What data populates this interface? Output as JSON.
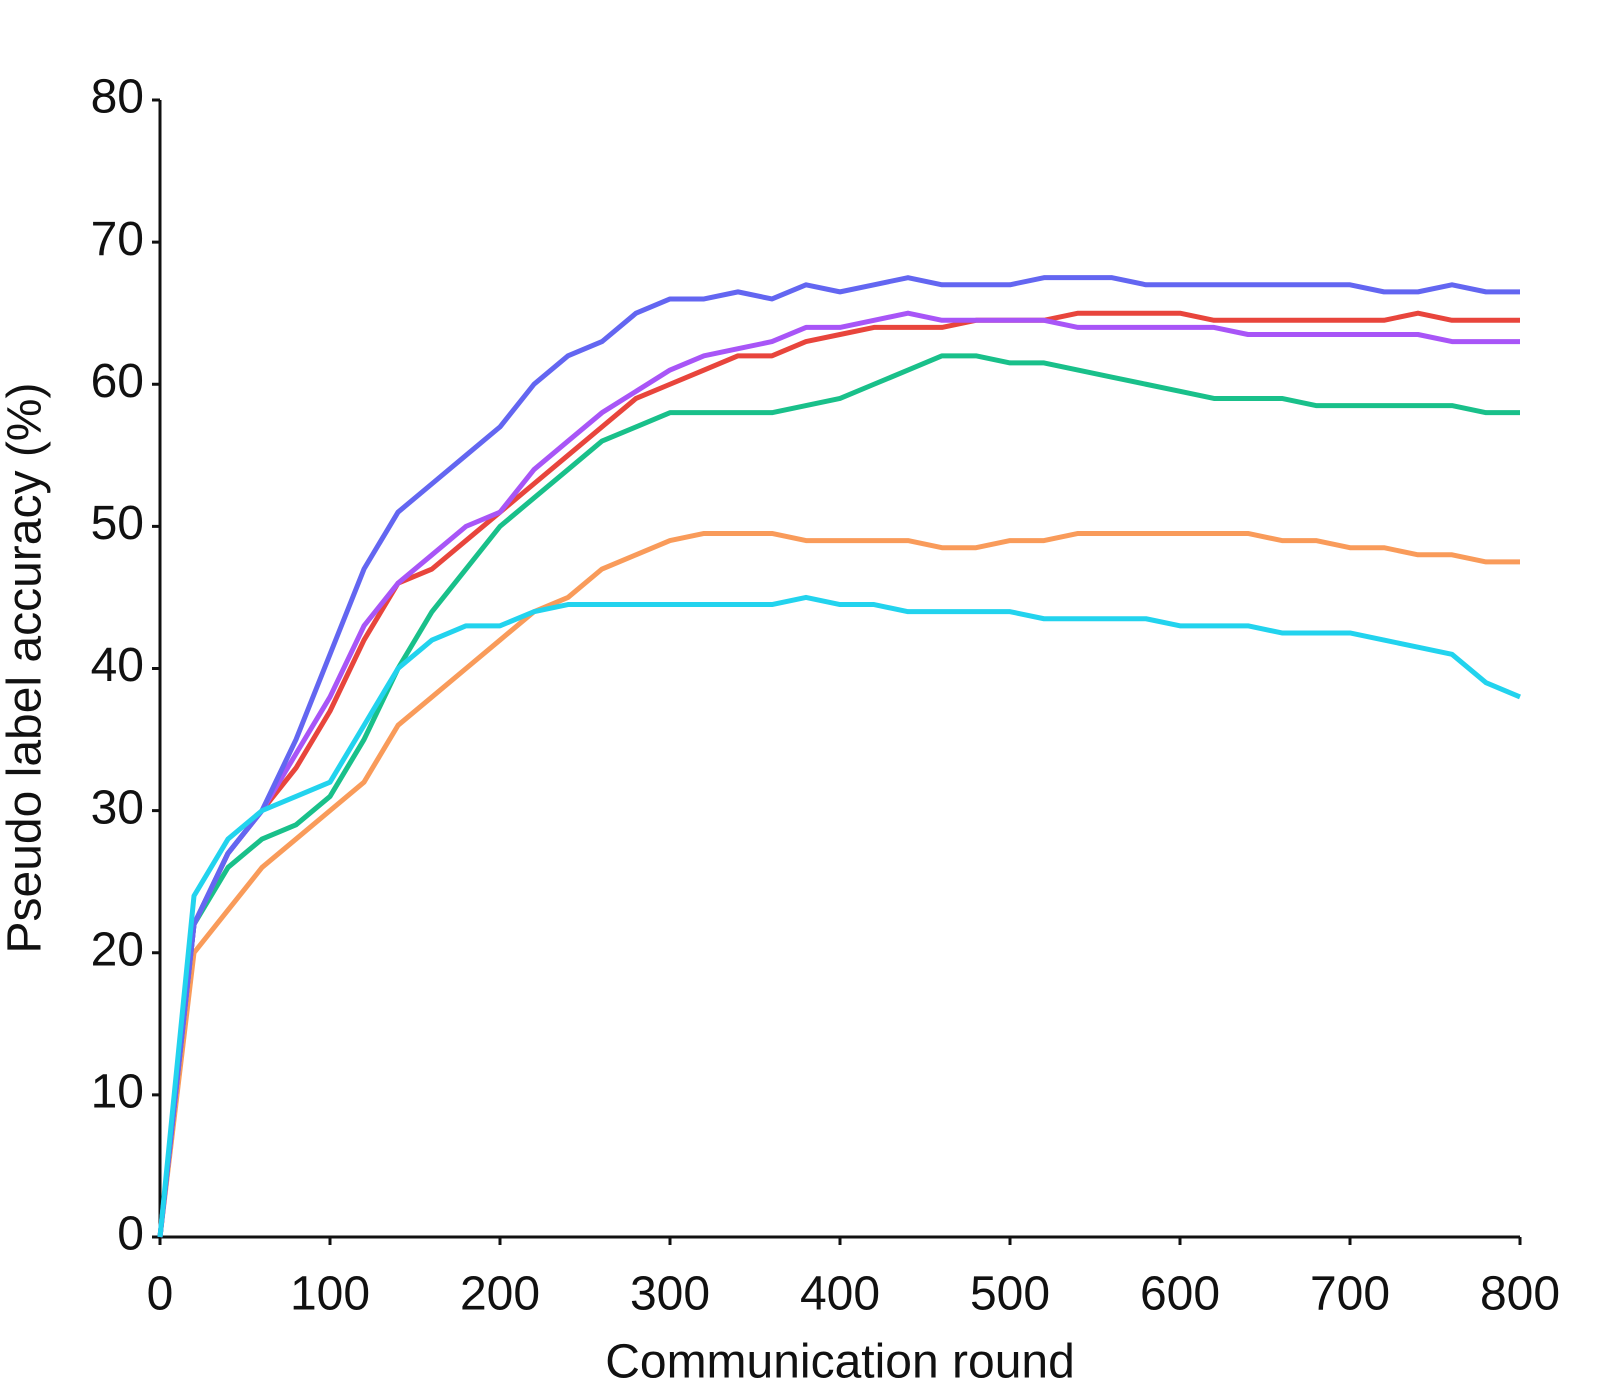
{
  "chart_data": {
    "type": "line",
    "x_label": "Communication round",
    "y_label": "Pseudo label accuracy (%)",
    "xlim": [
      0,
      800
    ],
    "xticks": [
      0,
      100,
      200,
      300,
      400,
      500,
      600,
      700,
      800
    ],
    "ylim": [
      0,
      80
    ],
    "yticks": [
      0,
      10,
      20,
      30,
      40,
      50,
      60,
      70,
      80
    ],
    "grid": false,
    "x": [
      0,
      20,
      40,
      60,
      80,
      100,
      120,
      140,
      160,
      180,
      200,
      220,
      240,
      260,
      280,
      300,
      320,
      340,
      360,
      380,
      400,
      420,
      440,
      460,
      480,
      500,
      520,
      540,
      560,
      580,
      600,
      620,
      640,
      660,
      680,
      700,
      720,
      740,
      760,
      780,
      800
    ],
    "series": [
      {
        "color": "#f99b5a",
        "values": [
          0,
          20,
          23,
          26,
          28,
          30,
          32,
          36,
          38,
          40,
          42,
          44,
          45,
          47,
          48,
          49,
          49.5,
          49.5,
          49.5,
          49,
          49,
          49,
          49,
          48.5,
          48.5,
          49,
          49,
          49.5,
          49.5,
          49.5,
          49.5,
          49.5,
          49.5,
          49,
          49,
          48.5,
          48.5,
          48,
          48,
          47.5,
          47.5
        ]
      },
      {
        "color": "#19c08a",
        "values": [
          0,
          22,
          26,
          28,
          29,
          31,
          35,
          40,
          44,
          47,
          50,
          52,
          54,
          56,
          57,
          58,
          58,
          58,
          58,
          58.5,
          59,
          60,
          61,
          62,
          62,
          61.5,
          61.5,
          61,
          60.5,
          60,
          59.5,
          59,
          59,
          59,
          58.5,
          58.5,
          58.5,
          58.5,
          58.5,
          58,
          58
        ]
      },
      {
        "color": "#e8453c",
        "values": [
          0,
          22,
          27,
          30,
          33,
          37,
          42,
          46,
          47,
          49,
          51,
          53,
          55,
          57,
          59,
          60,
          61,
          62,
          62,
          63,
          63.5,
          64,
          64,
          64,
          64.5,
          64.5,
          64.5,
          65,
          65,
          65,
          65,
          64.5,
          64.5,
          64.5,
          64.5,
          64.5,
          64.5,
          65,
          64.5,
          64.5,
          64.5
        ]
      },
      {
        "color": "#a855f7",
        "values": [
          0,
          22,
          27,
          30,
          34,
          38,
          43,
          46,
          48,
          50,
          51,
          54,
          56,
          58,
          59.5,
          61,
          62,
          62.5,
          63,
          64,
          64,
          64.5,
          65,
          64.5,
          64.5,
          64.5,
          64.5,
          64,
          64,
          64,
          64,
          64,
          63.5,
          63.5,
          63.5,
          63.5,
          63.5,
          63.5,
          63,
          63,
          63
        ]
      },
      {
        "color": "#6366f1",
        "values": [
          0,
          22,
          27,
          30,
          35,
          41,
          47,
          51,
          53,
          55,
          57,
          60,
          62,
          63,
          65,
          66,
          66,
          66.5,
          66,
          67,
          66.5,
          67,
          67.5,
          67,
          67,
          67,
          67.5,
          67.5,
          67.5,
          67,
          67,
          67,
          67,
          67,
          67,
          67,
          66.5,
          66.5,
          67,
          66.5,
          66.5
        ]
      },
      {
        "color": "#22d3ee",
        "values": [
          0,
          24,
          28,
          30,
          31,
          32,
          36,
          40,
          42,
          43,
          43,
          44,
          44.5,
          44.5,
          44.5,
          44.5,
          44.5,
          44.5,
          44.5,
          45,
          44.5,
          44.5,
          44,
          44,
          44,
          44,
          43.5,
          43.5,
          43.5,
          43.5,
          43,
          43,
          43,
          42.5,
          42.5,
          42.5,
          42,
          41.5,
          41,
          39,
          38
        ]
      }
    ]
  }
}
